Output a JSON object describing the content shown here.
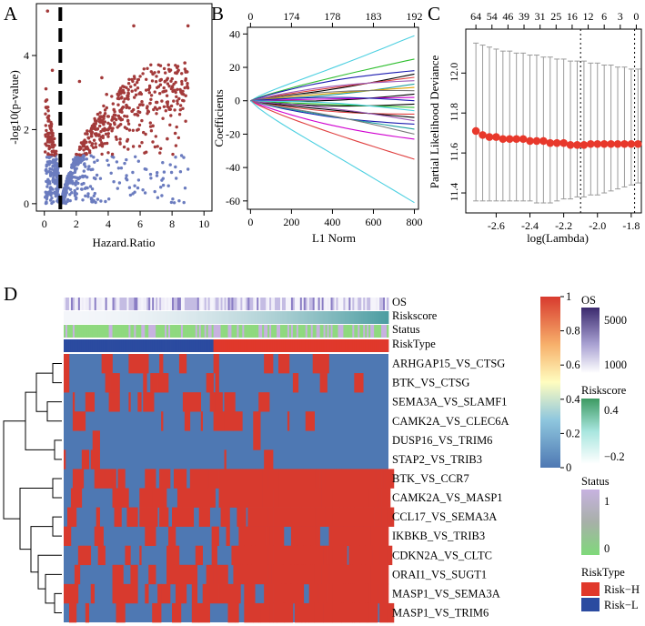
{
  "panels": {
    "A": {
      "letter": "A",
      "chart_data": {
        "type": "scatter",
        "title": "",
        "xlabel": "Hazard.Ratio",
        "ylabel": "-log10(p-value)",
        "xlim": [
          -0.5,
          10.5
        ],
        "ylim": [
          -0.2,
          5.4
        ],
        "xticks": [
          "0",
          "2",
          "4",
          "6",
          "8",
          "10"
        ],
        "yticks": [
          "0",
          "2",
          "4"
        ],
        "threshold_line_x": 1,
        "series": [
          {
            "name": "significant",
            "color": "#a33a3a"
          },
          {
            "name": "not significant",
            "color": "#6b7cbf"
          }
        ],
        "outlier_points": [
          [
            0.2,
            5.2
          ],
          [
            0.5,
            3.6
          ],
          [
            0.1,
            3.1
          ],
          [
            3.6,
            3.4
          ],
          [
            3.9,
            2.95
          ],
          [
            5.6,
            4.8
          ],
          [
            9.0,
            4.8
          ],
          [
            6.8,
            3.5
          ],
          [
            8.8,
            3.8
          ],
          [
            2.2,
            3.3
          ],
          [
            7.8,
            2.6
          ],
          [
            8.2,
            1.9
          ],
          [
            6.8,
            2.1
          ],
          [
            7.7,
            1.75
          ]
        ]
      }
    },
    "B": {
      "letter": "B",
      "chart_data": {
        "type": "line",
        "title": "",
        "xlabel": "L1 Norm",
        "ylabel": "Coefficients",
        "xlim": [
          -15,
          820
        ],
        "ylim": [
          -65,
          44
        ],
        "xticks": [
          "0",
          "200",
          "400",
          "600",
          "800"
        ],
        "yticks": [
          "-60",
          "-40",
          "-20",
          "0",
          "20",
          "40"
        ],
        "top_ticks": [
          "0",
          "174",
          "178",
          "183",
          "192"
        ],
        "series_endpoints": [
          {
            "name": "s1",
            "color": "#4dd0e1",
            "end": 39
          },
          {
            "name": "s2",
            "color": "#2fbf2f",
            "end": 25
          },
          {
            "name": "s3",
            "color": "#1c1cb0",
            "end": 18
          },
          {
            "name": "s4",
            "color": "#000000",
            "end": 16
          },
          {
            "name": "s5",
            "color": "#e04040",
            "end": 14
          },
          {
            "name": "s6",
            "color": "#9b59b6",
            "end": 12
          },
          {
            "name": "s7",
            "color": "#20a0a0",
            "end": 10
          },
          {
            "name": "s8",
            "color": "#e0a000",
            "end": 8
          },
          {
            "name": "s9",
            "color": "#777777",
            "end": 6
          },
          {
            "name": "s10",
            "color": "#000000",
            "end": 4
          },
          {
            "name": "s11",
            "color": "#d000d0",
            "end": 2
          },
          {
            "name": "s12",
            "color": "#1c1cb0",
            "end": 0
          },
          {
            "name": "s13",
            "color": "#000000",
            "end": -2
          },
          {
            "name": "s14",
            "color": "#2fbf2f",
            "end": -4
          },
          {
            "name": "s15",
            "color": "#4dd0e1",
            "end": -6
          },
          {
            "name": "s16",
            "color": "#e04040",
            "end": -8
          },
          {
            "name": "s17",
            "color": "#000000",
            "end": -10
          },
          {
            "name": "s18",
            "color": "#9b59b6",
            "end": -12
          },
          {
            "name": "s19",
            "color": "#1c1cb0",
            "end": -14
          },
          {
            "name": "s20",
            "color": "#20a0a0",
            "end": -17
          },
          {
            "name": "s21",
            "color": "#777777",
            "end": -20
          },
          {
            "name": "s22",
            "color": "#d000d0",
            "end": -23
          },
          {
            "name": "s23",
            "color": "#e04040",
            "end": -35
          },
          {
            "name": "s24",
            "color": "#4dd0e1",
            "end": -61
          }
        ]
      }
    },
    "C": {
      "letter": "C",
      "chart_data": {
        "type": "scatter",
        "title": "",
        "xlabel": "log(Lambda)",
        "ylabel": "Partial Likelihood Deviance",
        "xlim": [
          -2.78,
          -1.74
        ],
        "ylim": [
          11.3,
          12.22
        ],
        "xticks": [
          "-2.6",
          "-2.4",
          "-2.2",
          "-2.0",
          "-1.8"
        ],
        "yticks": [
          "11.4",
          "11.6",
          "11.8",
          "12.0"
        ],
        "top_ticks": [
          "64",
          "54",
          "46",
          "39",
          "31",
          "25",
          "16",
          "12",
          "6",
          "3",
          "0"
        ],
        "vlines": [
          -2.1,
          -1.78
        ],
        "x": [
          -2.72,
          -2.68,
          -2.64,
          -2.6,
          -2.56,
          -2.52,
          -2.48,
          -2.44,
          -2.4,
          -2.36,
          -2.32,
          -2.28,
          -2.24,
          -2.2,
          -2.16,
          -2.12,
          -2.08,
          -2.04,
          -2.0,
          -1.96,
          -1.92,
          -1.88,
          -1.84,
          -1.8,
          -1.76
        ],
        "mean": [
          11.71,
          11.69,
          11.68,
          11.68,
          11.67,
          11.67,
          11.67,
          11.67,
          11.66,
          11.66,
          11.66,
          11.65,
          11.65,
          11.65,
          11.64,
          11.64,
          11.64,
          11.645,
          11.645,
          11.645,
          11.645,
          11.645,
          11.645,
          11.645,
          11.645
        ],
        "upper": [
          12.15,
          12.14,
          12.13,
          12.12,
          12.11,
          12.11,
          12.1,
          12.1,
          12.09,
          12.09,
          12.08,
          12.08,
          12.07,
          12.07,
          12.06,
          12.06,
          12.06,
          12.05,
          12.05,
          12.04,
          12.04,
          12.03,
          12.03,
          12.02,
          12.02
        ],
        "lower": [
          11.36,
          11.36,
          11.36,
          11.36,
          11.36,
          11.36,
          11.36,
          11.36,
          11.36,
          11.35,
          11.35,
          11.35,
          11.36,
          11.37,
          11.37,
          11.38,
          11.38,
          11.39,
          11.39,
          11.4,
          11.41,
          11.42,
          11.43,
          11.44,
          11.45
        ]
      }
    },
    "D": {
      "letter": "D",
      "chart_data": {
        "type": "heatmap",
        "title": "",
        "annotation_labels": [
          "OS",
          "Riskscore",
          "Status",
          "RiskType"
        ],
        "rows": [
          "ARHGAP15_VS_CTSG",
          "BTK_VS_CTSG",
          "SEMA3A_VS_SLAMF1",
          "CAMK2A_VS_CLEC6A",
          "DUSP16_VS_TRIM6",
          "STAP2_VS_TRIB3",
          "BTK_VS_CCR7",
          "CAMK2A_VS_MASP1",
          "CCL17_VS_SEMA3A",
          "IKBKB_VS_TRIB3",
          "CDKN2A_VS_CLTC",
          "ORAI1_VS_SUGT1",
          "MASP1_VS_SEMA3A",
          "MASP1_VS_TRIM6"
        ],
        "row_red_fraction": [
          0.3,
          0.32,
          0.25,
          0.2,
          0.06,
          0.07,
          0.8,
          0.82,
          0.62,
          0.6,
          0.55,
          0.56,
          0.58,
          0.57
        ],
        "colorbar": {
          "ticks": [
            "1",
            "0.8",
            "0.6",
            "0.4",
            "0.2",
            "0"
          ],
          "low": "#4e78b3",
          "mid": "#fffdbf",
          "high": "#d83a2e"
        },
        "legends": {
          "OS": {
            "title": "OS",
            "ticks": [
              "5000",
              "1000"
            ]
          },
          "Riskscore": {
            "title": "Riskscore",
            "ticks": [
              "0.4",
              "−0.2"
            ]
          },
          "Status": {
            "title": "Status",
            "ticks": [
              "1",
              "0"
            ]
          },
          "RiskType": {
            "title": "RiskType",
            "items": [
              {
                "label": "Risk−H",
                "color": "#e0382b"
              },
              {
                "label": "Risk−L",
                "color": "#2b4ba0"
              }
            ]
          }
        },
        "risk_split_fraction": 0.46
      }
    }
  }
}
